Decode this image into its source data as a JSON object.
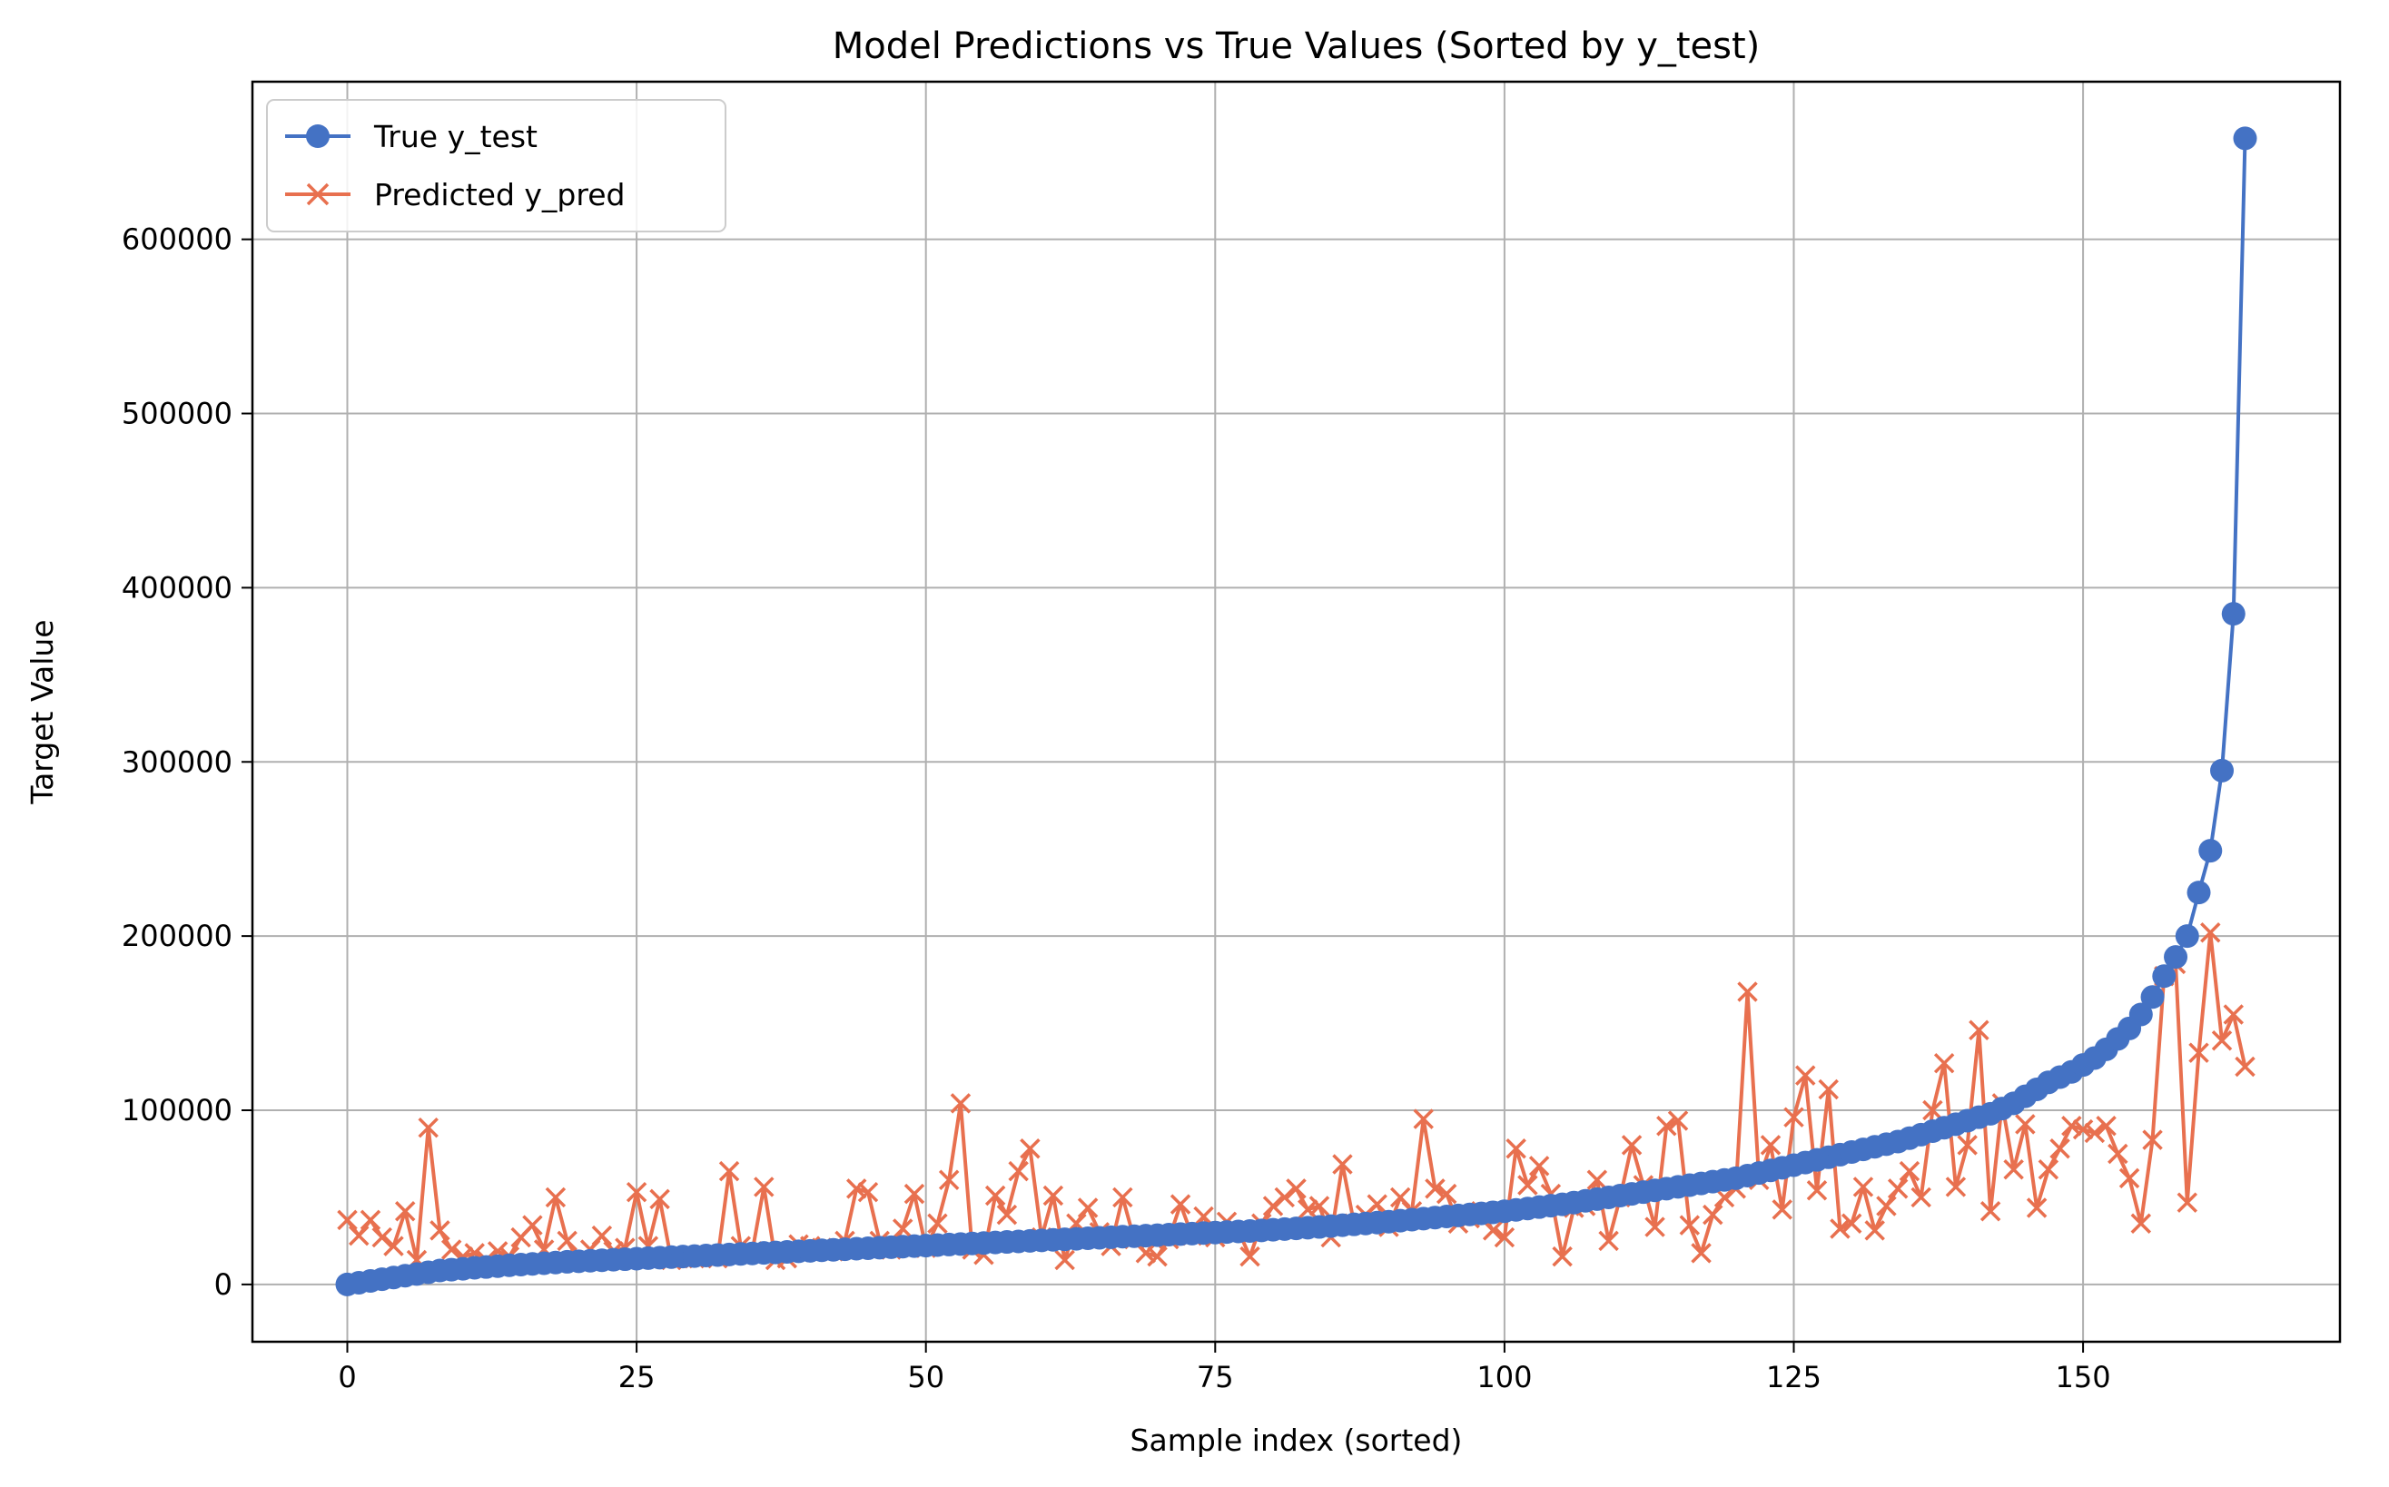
{
  "chart_data": {
    "type": "line",
    "title": "Model Predictions vs True Values (Sorted by y_test)",
    "xlabel": "Sample index (sorted)",
    "ylabel": "Target Value",
    "xlim": [
      -8.2,
      172.2
    ],
    "ylim": [
      -32900,
      690500
    ],
    "xticks": [
      0,
      25,
      50,
      75,
      100,
      125,
      150
    ],
    "yticks": [
      0,
      100000,
      200000,
      300000,
      400000,
      500000,
      600000
    ],
    "grid": true,
    "legend_position": "upper left",
    "series": [
      {
        "name": "True y_test",
        "color": "#4472c4",
        "marker": "circle",
        "values": [
          0,
          1000,
          2000,
          3000,
          4000,
          5000,
          6000,
          7000,
          8000,
          8500,
          9000,
          9600,
          10000,
          10500,
          11000,
          11400,
          11800,
          12200,
          12600,
          13000,
          13300,
          13600,
          13900,
          14200,
          14500,
          14800,
          15100,
          15400,
          15700,
          16000,
          16300,
          16600,
          16900,
          17200,
          17500,
          17800,
          18100,
          18400,
          18700,
          19000,
          19300,
          19600,
          19900,
          20200,
          20500,
          20800,
          21100,
          21400,
          21700,
          22000,
          22300,
          22600,
          22900,
          23200,
          23500,
          23800,
          24100,
          24400,
          24700,
          25000,
          25300,
          25600,
          25900,
          26200,
          26500,
          26800,
          27100,
          27400,
          27700,
          28000,
          28300,
          28600,
          28900,
          29200,
          29500,
          29800,
          30100,
          30400,
          30700,
          31000,
          31400,
          31800,
          32200,
          32600,
          33000,
          33500,
          34000,
          34500,
          35000,
          35500,
          36000,
          36600,
          37200,
          37800,
          38400,
          39000,
          39600,
          40200,
          40800,
          41400,
          42000,
          42800,
          43600,
          44400,
          45200,
          46000,
          47000,
          48000,
          49000,
          50000,
          51000,
          52000,
          53000,
          54000,
          55000,
          56000,
          57000,
          58000,
          59000,
          60000,
          61000,
          62500,
          64000,
          65500,
          67000,
          68500,
          70000,
          71500,
          73000,
          74500,
          76000,
          77500,
          79000,
          80500,
          82000,
          84000,
          86000,
          88000,
          90000,
          92000,
          94000,
          96000,
          98000,
          101000,
          104000,
          108000,
          112000,
          116000,
          119000,
          122000,
          126000,
          130000,
          135000,
          141000,
          147000,
          155000,
          165000,
          177000,
          188000,
          200000,
          225000,
          249000,
          295000,
          385000,
          658000
        ]
      },
      {
        "name": "Predicted y_pred",
        "color": "#e8704f",
        "marker": "x",
        "values": [
          37000,
          28000,
          37000,
          27000,
          22000,
          42000,
          14000,
          90000,
          31000,
          20000,
          16000,
          18000,
          14000,
          19000,
          16000,
          27000,
          34000,
          20000,
          50000,
          25000,
          14000,
          20000,
          28000,
          19000,
          21000,
          53000,
          22000,
          49000,
          14000,
          15000,
          15000,
          17000,
          15000,
          65000,
          22000,
          19000,
          56000,
          14000,
          15000,
          23000,
          22000,
          21000,
          19000,
          25000,
          55000,
          53000,
          25000,
          20000,
          32000,
          52000,
          21000,
          35000,
          60000,
          104000,
          20000,
          17000,
          51000,
          40000,
          65000,
          78000,
          27000,
          51000,
          14000,
          35000,
          44000,
          30000,
          22000,
          50000,
          26000,
          18000,
          16000,
          26000,
          46000,
          28000,
          39000,
          27000,
          36000,
          31000,
          16000,
          35000,
          45000,
          50000,
          55000,
          43000,
          45000,
          27000,
          69000,
          35000,
          40000,
          46000,
          33000,
          50000,
          42000,
          95000,
          55000,
          52000,
          35000,
          38000,
          42000,
          31000,
          27000,
          78000,
          57000,
          68000,
          52000,
          16000,
          44000,
          45000,
          60000,
          25000,
          50000,
          80000,
          57000,
          33000,
          91000,
          94000,
          34000,
          18000,
          40000,
          50000,
          55000,
          168000,
          60000,
          80000,
          43000,
          96000,
          120000,
          54000,
          112000,
          32000,
          35000,
          56000,
          31000,
          45000,
          55000,
          65000,
          50000,
          100000,
          127000,
          56000,
          80000,
          146000,
          42000,
          104000,
          66000,
          92000,
          44000,
          66000,
          78000,
          91000,
          89000,
          87000,
          91000,
          75000,
          61000,
          35000,
          83000,
          177000,
          184000,
          47000,
          133000,
          202000,
          140000,
          155000,
          125000
        ]
      }
    ]
  }
}
